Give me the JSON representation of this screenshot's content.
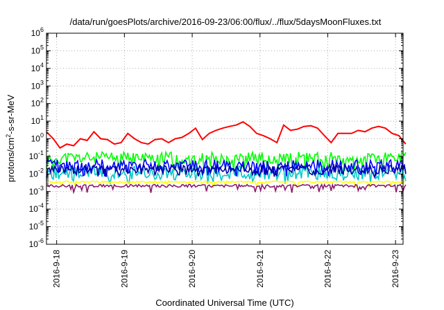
{
  "chart_data": {
    "type": "line",
    "title": "/data/run/goesPlots/archive/2016-09-23/06:00/flux/../flux/5daysMoonFluxes.txt",
    "xlabel": "Coordinated Universal Time (UTC)",
    "ylabel": {
      "prefix": "protons/cm",
      "sup": "2",
      "suffix": "-s-sr-MeV"
    },
    "yscale": "log",
    "ylim_exp": [
      -6,
      6
    ],
    "ytick_labels": [
      {
        "base": "10",
        "exp": "6"
      },
      {
        "base": "10",
        "exp": "5"
      },
      {
        "base": "10",
        "exp": "4"
      },
      {
        "base": "10",
        "exp": "3"
      },
      {
        "base": "10",
        "exp": "2"
      },
      {
        "base": "10",
        "exp": "1"
      },
      {
        "base": "10",
        "exp": "0"
      },
      {
        "base": "10",
        "exp": "-1"
      },
      {
        "base": "10",
        "exp": "-2"
      },
      {
        "base": "10",
        "exp": "-3"
      },
      {
        "base": "10",
        "exp": "-4"
      },
      {
        "base": "10",
        "exp": "-5"
      },
      {
        "base": "10",
        "exp": "-6"
      }
    ],
    "xticks": [
      "2016-9-18",
      "2016-9-19",
      "2016-9-20",
      "2016-9-21",
      "2016-9-22",
      "2016-9-23"
    ],
    "xlim_days": [
      0,
      5.3
    ],
    "grid": true,
    "series": [
      {
        "color": "#ff0000",
        "x": [
          0,
          0.1,
          0.2,
          0.3,
          0.4,
          0.5,
          0.6,
          0.7,
          0.8,
          0.9,
          1.0,
          1.1,
          1.2,
          1.3,
          1.4,
          1.5,
          1.6,
          1.7,
          1.8,
          1.9,
          2.0,
          2.1,
          2.2,
          2.3,
          2.4,
          2.5,
          2.6,
          2.7,
          2.8,
          2.9,
          3.0,
          3.1,
          3.2,
          3.3,
          3.4,
          3.5,
          3.6,
          3.7,
          3.8,
          3.9,
          4.0,
          4.1,
          4.2,
          4.3,
          4.4,
          4.5,
          4.6,
          4.7,
          4.8,
          4.9,
          5.0,
          5.1,
          5.2,
          5.3
        ],
        "y": [
          2.5,
          1.0,
          0.3,
          0.5,
          0.4,
          1.0,
          0.8,
          2.5,
          1.0,
          0.9,
          0.5,
          0.6,
          2.0,
          1.0,
          0.6,
          0.5,
          0.9,
          1.0,
          0.6,
          1.0,
          1.2,
          2.0,
          4.0,
          0.9,
          2.0,
          3.0,
          4.0,
          5.0,
          6.0,
          9.0,
          5.0,
          2.0,
          1.5,
          1.0,
          0.6,
          6.0,
          3.0,
          3.5,
          5.0,
          5.5,
          4.0,
          1.5,
          0.6,
          2.0,
          2.0,
          2.0,
          3.0,
          2.5,
          4.0,
          5.0,
          4.0,
          2.0,
          1.5,
          0.5
        ]
      },
      {
        "color": "#00ff00",
        "base": 0.08,
        "amp": 0.35,
        "dip": 0.02,
        "seed": 11
      },
      {
        "color": "#00c8c8",
        "base": 0.012,
        "amp": 0.4,
        "dip": 0.004,
        "seed": 23
      },
      {
        "color": "#0000ff",
        "base": 0.03,
        "amp": 0.35,
        "dip": 0.01,
        "seed": 37
      },
      {
        "color": "#0000a0",
        "base": 0.018,
        "amp": 0.25,
        "dip": 0.008,
        "seed": 41
      },
      {
        "color": "#ffff00",
        "base": 0.0035,
        "amp": 0.05,
        "dip": 0.0025,
        "seed": 53
      },
      {
        "color": "#8b1a6b",
        "base": 0.0021,
        "amp": 0.08,
        "dip": 0.0012,
        "seed": 67
      }
    ]
  }
}
